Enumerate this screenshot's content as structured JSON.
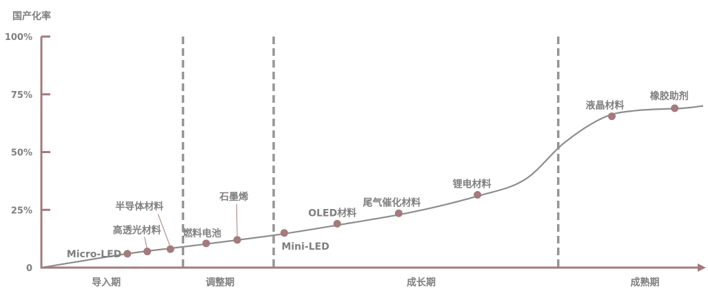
{
  "chart_data": {
    "type": "line",
    "ylabel": "国产化率",
    "yticks": [
      {
        "value": 100,
        "label": "100%"
      },
      {
        "value": 75,
        "label": "75%"
      },
      {
        "value": 50,
        "label": "50%"
      },
      {
        "value": 25,
        "label": "25%"
      },
      {
        "value": 0,
        "label": "0"
      }
    ],
    "ylim": [
      0,
      100
    ],
    "xlim": [
      0,
      1000
    ],
    "phase_boundaries": [
      214,
      351,
      781
    ],
    "phases": [
      {
        "label": "导入期",
        "center": 98
      },
      {
        "label": "调整期",
        "center": 270
      },
      {
        "label": "成长期",
        "center": 574
      },
      {
        "label": "成熟期",
        "center": 912
      }
    ],
    "curve": {
      "x": [
        0,
        130,
        214,
        351,
        460,
        560,
        660,
        730,
        790,
        850,
        900,
        970,
        1000
      ],
      "y": [
        0,
        6,
        9,
        14,
        19,
        24,
        31,
        38,
        54,
        65,
        68,
        69,
        70
      ]
    },
    "points": [
      {
        "label": "Micro-LED",
        "x": 130,
        "y": 6
      },
      {
        "label": "高透光材料",
        "x": 160,
        "y": 7
      },
      {
        "label": "半导体材料",
        "x": 195,
        "y": 8
      },
      {
        "label": "燃料电池",
        "x": 249,
        "y": 10.5
      },
      {
        "label": "石墨烯",
        "x": 296,
        "y": 12
      },
      {
        "label": "Mini-LED",
        "x": 367,
        "y": 15
      },
      {
        "label": "OLED材料",
        "x": 447,
        "y": 19
      },
      {
        "label": "尾气催化材料",
        "x": 540,
        "y": 23.5
      },
      {
        "label": "锂电材料",
        "x": 659,
        "y": 31.5
      },
      {
        "label": "液晶材料",
        "x": 862,
        "y": 65.5
      },
      {
        "label": "橡胶助剂",
        "x": 957,
        "y": 69
      }
    ],
    "legend": "none",
    "grid": false,
    "colors": {
      "axis": "#a47a7c",
      "curve": "#8c8c8c",
      "marker": "#a47a7c",
      "divider": "#959595",
      "text": "#7f7f7f"
    }
  }
}
